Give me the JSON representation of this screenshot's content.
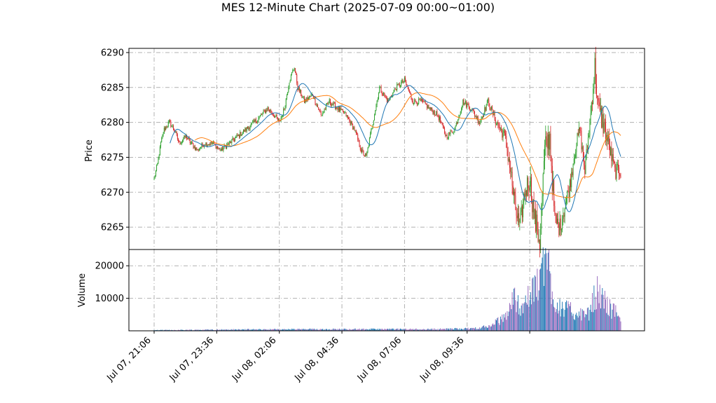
{
  "chart_data": {
    "type": "candlestick",
    "title": "MES 12-Minute Chart (2025-07-09 00:00~01:00)",
    "price_panel": {
      "ylabel": "Price",
      "ylim": [
        6261.8,
        6290.6
      ],
      "yticks": [
        6265,
        6270,
        6275,
        6280,
        6285,
        6290
      ]
    },
    "volume_panel": {
      "ylabel": "Volume",
      "ylim": [
        0,
        25000
      ],
      "yticks": [
        10000,
        20000
      ],
      "ytick_labels": [
        "10000",
        "20000"
      ]
    },
    "x_axis": {
      "tick_labels": [
        "Jul 07, 21:06",
        "Jul 07, 23:36",
        "Jul 08, 02:06",
        "Jul 08, 04:36",
        "Jul 08, 07:06",
        "Jul 08, 09:36",
        ""
      ]
    },
    "colors": {
      "up": "#2ca02c",
      "down": "#d62728",
      "ma_fast": "#1f77b4",
      "ma_slow": "#ff7f0e",
      "grid": "#b0b0b0"
    },
    "grid": true,
    "close_path": [
      [
        0,
        6272
      ],
      [
        4,
        6274
      ],
      [
        8,
        6277
      ],
      [
        12,
        6279
      ],
      [
        18,
        6280
      ],
      [
        24,
        6279
      ],
      [
        30,
        6277
      ],
      [
        38,
        6278
      ],
      [
        44,
        6277
      ],
      [
        52,
        6276
      ],
      [
        60,
        6277
      ],
      [
        70,
        6277
      ],
      [
        80,
        6276
      ],
      [
        90,
        6277
      ],
      [
        100,
        6278
      ],
      [
        110,
        6279
      ],
      [
        120,
        6280
      ],
      [
        128,
        6281
      ],
      [
        136,
        6282
      ],
      [
        144,
        6281
      ],
      [
        150,
        6280
      ],
      [
        156,
        6282
      ],
      [
        162,
        6286
      ],
      [
        168,
        6288
      ],
      [
        172,
        6285
      ],
      [
        180,
        6283
      ],
      [
        190,
        6284
      ],
      [
        200,
        6281
      ],
      [
        210,
        6283
      ],
      [
        220,
        6282
      ],
      [
        230,
        6281
      ],
      [
        240,
        6279
      ],
      [
        248,
        6276
      ],
      [
        254,
        6275
      ],
      [
        262,
        6280
      ],
      [
        270,
        6285
      ],
      [
        280,
        6283
      ],
      [
        290,
        6285
      ],
      [
        300,
        6286
      ],
      [
        310,
        6283
      ],
      [
        320,
        6283
      ],
      [
        330,
        6282
      ],
      [
        340,
        6281
      ],
      [
        350,
        6278
      ],
      [
        360,
        6279
      ],
      [
        370,
        6283
      ],
      [
        380,
        6282
      ],
      [
        390,
        6280
      ],
      [
        400,
        6283
      ],
      [
        410,
        6280
      ],
      [
        420,
        6278
      ],
      [
        426,
        6274
      ],
      [
        432,
        6268
      ],
      [
        438,
        6265
      ],
      [
        444,
        6270
      ],
      [
        450,
        6272
      ],
      [
        456,
        6266
      ],
      [
        462,
        6263
      ],
      [
        468,
        6276
      ],
      [
        474,
        6278
      ],
      [
        480,
        6266
      ],
      [
        486,
        6265
      ],
      [
        492,
        6268
      ],
      [
        498,
        6271
      ],
      [
        504,
        6276
      ],
      [
        510,
        6279
      ],
      [
        516,
        6273
      ],
      [
        522,
        6280
      ],
      [
        528,
        6288
      ],
      [
        532,
        6282
      ],
      [
        540,
        6279
      ],
      [
        546,
        6276
      ],
      [
        552,
        6273
      ],
      [
        559,
        6273
      ]
    ],
    "volume_path": [
      [
        0,
        200
      ],
      [
        100,
        400
      ],
      [
        200,
        500
      ],
      [
        280,
        500
      ],
      [
        330,
        500
      ],
      [
        380,
        700
      ],
      [
        400,
        1300
      ],
      [
        420,
        4000
      ],
      [
        430,
        10000
      ],
      [
        440,
        8000
      ],
      [
        450,
        10000
      ],
      [
        460,
        15000
      ],
      [
        470,
        23000
      ],
      [
        480,
        9000
      ],
      [
        490,
        7000
      ],
      [
        500,
        6000
      ],
      [
        510,
        5000
      ],
      [
        520,
        5000
      ],
      [
        530,
        12000
      ],
      [
        540,
        9000
      ],
      [
        550,
        6000
      ],
      [
        559,
        5000
      ]
    ],
    "bars": 560,
    "ma_fast_window": 20,
    "ma_slow_window": 50
  }
}
